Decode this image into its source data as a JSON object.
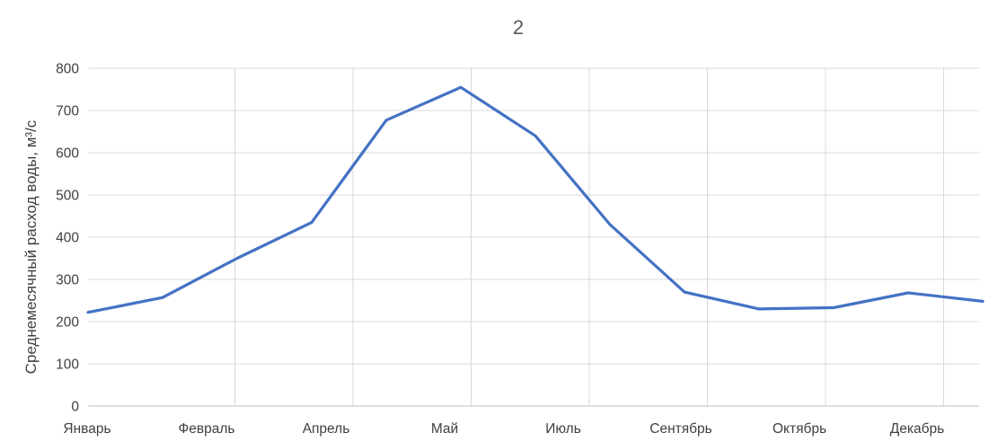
{
  "chart_data": {
    "type": "line",
    "title": "2",
    "ylabel": "Среднемесячный расход воды, м³/с",
    "xlabel": "",
    "x_tick_labels": [
      "Январь",
      "Февраль",
      "Апрель",
      "Май",
      "Июль",
      "Сентябрь",
      "Октябрь",
      "Декабрь"
    ],
    "y_ticks": [
      0,
      100,
      200,
      300,
      400,
      500,
      600,
      700,
      800
    ],
    "ylim": [
      0,
      800
    ],
    "grid": true,
    "legend": "none",
    "series": [
      {
        "color": "#4472c4",
        "values": [
          222,
          257,
          350,
          435,
          677,
          755,
          640,
          430,
          270,
          230,
          233,
          268,
          248
        ]
      }
    ]
  }
}
